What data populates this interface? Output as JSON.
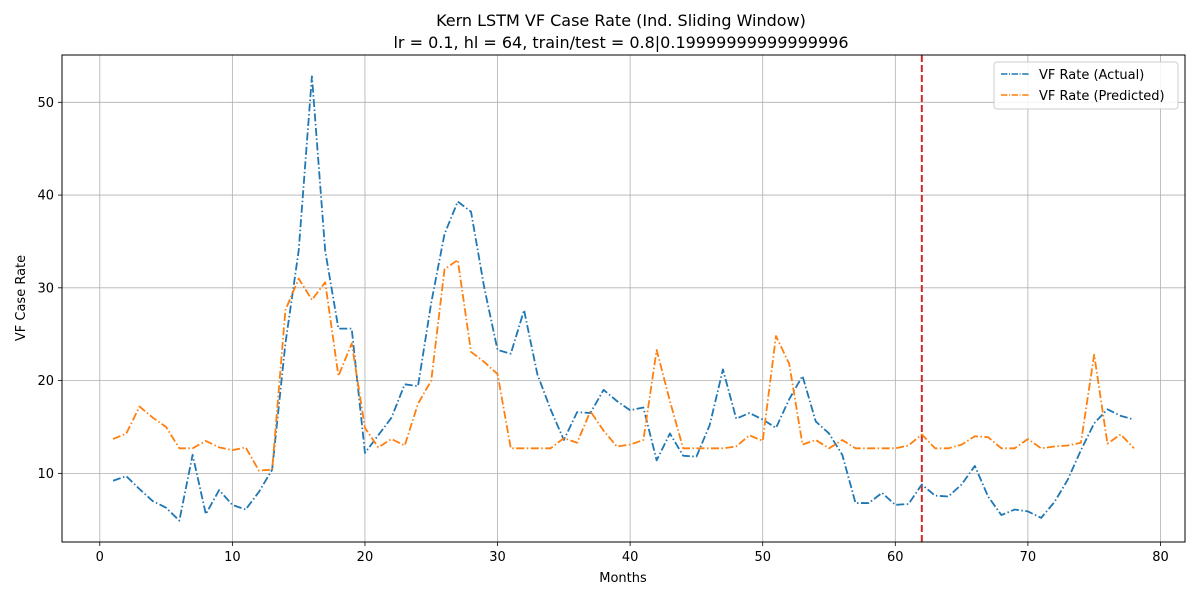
{
  "chart_data": {
    "type": "line",
    "title": "Kern LSTM VF Case Rate (Ind. Sliding Window)",
    "subtitle": "lr = 0.1, hl = 64, train/test = 0.8|0.19999999999999996",
    "xlabel": "Months",
    "ylabel": "VF Case Rate",
    "xlim": [
      -2.85,
      81.85
    ],
    "ylim": [
      2.6,
      55.1
    ],
    "xticks": [
      0,
      10,
      20,
      30,
      40,
      50,
      60,
      70,
      80
    ],
    "yticks": [
      10,
      20,
      30,
      40,
      50
    ],
    "grid": true,
    "legend_position": "top-right",
    "split_line": {
      "x": 62,
      "color": "#d62728",
      "style": "dashed"
    },
    "x": [
      1,
      2,
      3,
      4,
      5,
      6,
      7,
      8,
      9,
      10,
      11,
      12,
      13,
      14,
      15,
      16,
      17,
      18,
      19,
      20,
      21,
      22,
      23,
      24,
      25,
      26,
      27,
      28,
      29,
      30,
      31,
      32,
      33,
      34,
      35,
      36,
      37,
      38,
      39,
      40,
      41,
      42,
      43,
      44,
      45,
      46,
      47,
      48,
      49,
      50,
      51,
      52,
      53,
      54,
      55,
      56,
      57,
      58,
      59,
      60,
      61,
      62,
      63,
      64,
      65,
      66,
      67,
      68,
      69,
      70,
      71,
      72,
      73,
      74,
      75,
      76,
      77,
      78
    ],
    "series": [
      {
        "name": "VF Rate (Actual)",
        "color": "#1f77b4",
        "style": "dashdot",
        "values": [
          9.2,
          9.7,
          8.3,
          7.0,
          6.3,
          4.9,
          12.0,
          5.6,
          8.2,
          6.6,
          6.1,
          8.0,
          10.4,
          24.0,
          34.0,
          52.8,
          34.0,
          25.6,
          25.6,
          12.2,
          14.1,
          16.0,
          19.6,
          19.4,
          28.4,
          35.8,
          39.3,
          38.2,
          30.0,
          23.3,
          22.9,
          27.6,
          20.7,
          16.9,
          13.6,
          16.6,
          16.5,
          19.0,
          17.8,
          16.8,
          17.1,
          11.4,
          14.3,
          11.9,
          11.8,
          15.2,
          21.2,
          15.9,
          16.5,
          15.8,
          14.9,
          18.0,
          20.5,
          15.6,
          14.3,
          12.0,
          6.8,
          6.8,
          7.9,
          6.6,
          6.7,
          8.8,
          7.6,
          7.5,
          8.8,
          10.8,
          7.5,
          5.5,
          6.1,
          5.9,
          5.2,
          6.9,
          9.3,
          12.5,
          15.4,
          16.9,
          16.2,
          15.8
        ]
      },
      {
        "name": "VF Rate (Predicted)",
        "color": "#ff7f0e",
        "style": "dashdot",
        "values": [
          13.7,
          14.3,
          17.2,
          16.0,
          15.0,
          12.7,
          12.7,
          13.5,
          12.8,
          12.5,
          12.8,
          10.3,
          10.4,
          27.6,
          31.0,
          28.7,
          30.6,
          20.5,
          24.0,
          14.9,
          12.8,
          13.7,
          13.0,
          17.5,
          20.0,
          32.0,
          33.0,
          23.1,
          22.0,
          20.7,
          12.7,
          12.7,
          12.7,
          12.7,
          13.8,
          13.3,
          16.7,
          14.6,
          12.9,
          13.1,
          13.6,
          23.3,
          17.8,
          12.7,
          12.7,
          12.7,
          12.7,
          12.9,
          14.1,
          13.5,
          24.8,
          21.8,
          13.1,
          13.6,
          12.7,
          13.6,
          12.7,
          12.7,
          12.7,
          12.7,
          13.0,
          14.2,
          12.7,
          12.7,
          13.1,
          14.0,
          13.9,
          12.7,
          12.7,
          13.7,
          12.7,
          12.9,
          13.0,
          13.3,
          22.8,
          13.2,
          14.2,
          12.7
        ]
      }
    ]
  }
}
